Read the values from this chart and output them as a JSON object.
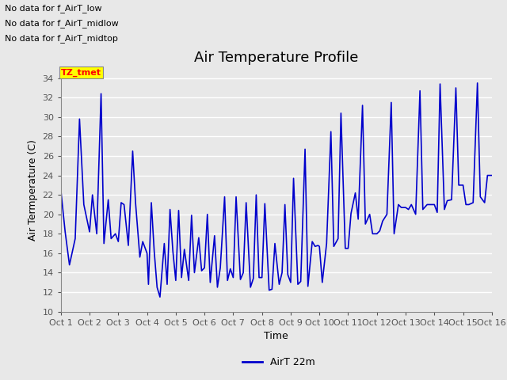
{
  "title": "Air Temperature Profile",
  "xlabel": "Time",
  "ylabel": "Air Termperature (C)",
  "ylim": [
    10,
    35
  ],
  "yticks": [
    10,
    12,
    14,
    16,
    18,
    20,
    22,
    24,
    26,
    28,
    30,
    32,
    34
  ],
  "xtick_labels": [
    "Oct 1",
    "Oct 2",
    "Oct 3",
    "Oct 4",
    "Oct 5",
    "Oct 6",
    "Oct 7",
    "Oct 8",
    "Oct 9",
    "Oct 10",
    "Oct 11",
    "Oct 12",
    "Oct 13",
    "Oct 14",
    "Oct 15",
    "Oct 16"
  ],
  "line_color": "#0000cc",
  "line_width": 1.2,
  "fig_bg_color": "#e8e8e8",
  "plot_bg_color": "#e8e8e8",
  "grid_color": "#ffffff",
  "annotations_top_left": [
    "No data for f_AirT_low",
    "No data for f_AirT_midlow",
    "No data for f_AirT_midtop"
  ],
  "tz_label": "TZ_tmet",
  "legend_label": "AirT 22m",
  "title_fontsize": 13,
  "label_fontsize": 9,
  "tick_fontsize": 8,
  "x_values": [
    0.0,
    0.15,
    0.3,
    0.5,
    0.65,
    0.8,
    1.0,
    1.1,
    1.25,
    1.4,
    1.5,
    1.65,
    1.75,
    1.9,
    2.0,
    2.1,
    2.2,
    2.35,
    2.5,
    2.6,
    2.75,
    2.85,
    3.0,
    3.05,
    3.15,
    3.25,
    3.35,
    3.45,
    3.6,
    3.7,
    3.8,
    3.9,
    4.0,
    4.1,
    4.2,
    4.3,
    4.45,
    4.55,
    4.65,
    4.8,
    4.9,
    5.0,
    5.1,
    5.2,
    5.35,
    5.45,
    5.55,
    5.7,
    5.8,
    5.9,
    6.0,
    6.1,
    6.25,
    6.35,
    6.45,
    6.6,
    6.7,
    6.8,
    6.9,
    7.0,
    7.1,
    7.25,
    7.35,
    7.45,
    7.6,
    7.7,
    7.8,
    7.9,
    8.0,
    8.1,
    8.25,
    8.35,
    8.5,
    8.6,
    8.75,
    8.85,
    8.95,
    9.0,
    9.1,
    9.25,
    9.4,
    9.5,
    9.65,
    9.75,
    9.9,
    10.0,
    10.1,
    10.25,
    10.35,
    10.5,
    10.6,
    10.75,
    10.85,
    10.95,
    11.0,
    11.1,
    11.2,
    11.35,
    11.5,
    11.6,
    11.75,
    11.85,
    11.95,
    12.0,
    12.1,
    12.2,
    12.35,
    12.5,
    12.6,
    12.75,
    12.85,
    12.95,
    13.0,
    13.1,
    13.2,
    13.35,
    13.45,
    13.6,
    13.75,
    13.85,
    13.95,
    14.0,
    14.1,
    14.2,
    14.35,
    14.5,
    14.6,
    14.75,
    14.85,
    14.95,
    15.0
  ],
  "y_values": [
    22.5,
    18.2,
    14.8,
    17.5,
    29.8,
    21.0,
    18.2,
    22.0,
    18.0,
    32.4,
    17.0,
    21.5,
    17.5,
    18.0,
    17.2,
    21.2,
    21.0,
    16.8,
    26.5,
    21.2,
    15.6,
    17.2,
    16.0,
    12.8,
    21.2,
    16.2,
    12.5,
    11.5,
    17.0,
    12.8,
    20.5,
    16.2,
    13.2,
    20.4,
    13.5,
    16.4,
    13.2,
    19.9,
    14.0,
    17.6,
    14.2,
    14.5,
    20.0,
    13.0,
    17.8,
    12.5,
    14.5,
    21.8,
    13.2,
    14.4,
    13.5,
    21.8,
    13.3,
    14.0,
    21.2,
    12.5,
    13.4,
    22.0,
    13.5,
    13.5,
    21.1,
    12.2,
    12.3,
    17.0,
    12.8,
    14.0,
    21.0,
    13.8,
    13.0,
    23.7,
    12.8,
    13.1,
    26.7,
    12.6,
    17.2,
    16.7,
    16.8,
    16.7,
    13.0,
    17.0,
    28.5,
    16.7,
    17.5,
    30.4,
    16.5,
    16.5,
    20.1,
    22.2,
    19.5,
    31.2,
    19.0,
    20.0,
    18.0,
    18.0,
    18.0,
    18.3,
    19.3,
    20.0,
    31.5,
    18.0,
    21.0,
    20.7,
    20.7,
    20.7,
    20.5,
    21.0,
    20.0,
    32.7,
    20.5,
    21.0,
    21.0,
    21.0,
    21.0,
    20.2,
    33.4,
    20.5,
    21.4,
    21.5,
    33.0,
    23.0,
    23.0,
    23.0,
    21.0,
    21.0,
    21.2,
    33.5,
    21.8,
    21.2,
    24.0,
    24.0,
    24.0
  ]
}
